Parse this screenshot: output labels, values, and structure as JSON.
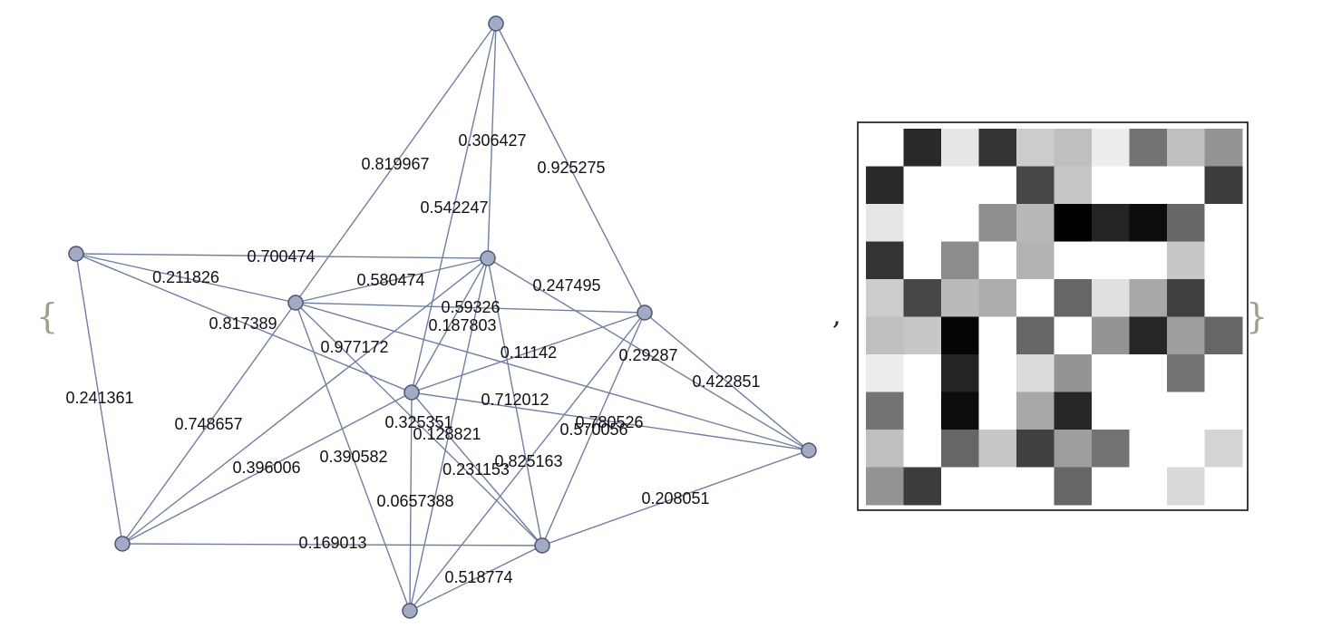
{
  "expression": {
    "open_brace": "{",
    "separator": ",",
    "close_brace": "}"
  },
  "graph": {
    "node_color": "#a3aac3",
    "edge_color": "#6f7fa3",
    "nodes": [
      "n1",
      "n2",
      "n3",
      "n4",
      "n5",
      "n6",
      "n7",
      "n8",
      "n9",
      "n10"
    ],
    "edges": [
      {
        "from": "n1",
        "to": "n2",
        "weight": "0.306427"
      },
      {
        "from": "n1",
        "to": "n4",
        "weight": "0.819967"
      },
      {
        "from": "n1",
        "to": "n5",
        "weight": "0.542247"
      },
      {
        "from": "n1",
        "to": "n8",
        "weight": "0.925275"
      },
      {
        "from": "n2",
        "to": "n3",
        "weight": "0.700474"
      },
      {
        "from": "n2",
        "to": "n4",
        "weight": "0.580474"
      },
      {
        "from": "n2",
        "to": "n5",
        "weight": "0.187803"
      },
      {
        "from": "n2",
        "to": "n6",
        "weight": "0.247495"
      },
      {
        "from": "n2",
        "to": "n7",
        "weight": "0.29287"
      },
      {
        "from": "n2",
        "to": "n9",
        "weight": "0.825163"
      },
      {
        "from": "n2",
        "to": "n10",
        "weight": "0.128821"
      },
      {
        "from": "n3",
        "to": "n4",
        "weight": "0.211826"
      },
      {
        "from": "n3",
        "to": "n5",
        "weight": "0.817389"
      },
      {
        "from": "n3",
        "to": "n6",
        "weight": "0.748657"
      },
      {
        "from": "n4",
        "to": "n6",
        "weight": "0.59326"
      },
      {
        "from": "n4",
        "to": "n8",
        "weight": "0.977172"
      },
      {
        "from": "n4",
        "to": "n9",
        "weight": "0.241361"
      },
      {
        "from": "n4",
        "to": "n10",
        "weight": "0.390582"
      },
      {
        "from": "n5",
        "to": "n6",
        "weight": "0.396006"
      },
      {
        "from": "n5",
        "to": "n7",
        "weight": "0.780526"
      },
      {
        "from": "n5",
        "to": "n8",
        "weight": "0.712012"
      },
      {
        "from": "n5",
        "to": "n9",
        "weight": "0.231153"
      },
      {
        "from": "n5",
        "to": "n10",
        "weight": "0.0657388"
      },
      {
        "from": "n6",
        "to": "n9",
        "weight": "0.169013"
      },
      {
        "from": "n7",
        "to": "n9",
        "weight": "0.208051"
      },
      {
        "from": "n8",
        "to": "n9",
        "weight": "0.11142"
      },
      {
        "from": "n8",
        "to": "n10",
        "weight": "0.325351"
      },
      {
        "from": "n8",
        "to": "n7",
        "weight": "0.422851"
      },
      {
        "from": "n9",
        "to": "n10",
        "weight": "0.518774"
      },
      {
        "from": "n4",
        "to": "n7",
        "weight": "0.570056"
      }
    ]
  },
  "matrix": {
    "rows": 10,
    "cols": 10,
    "values": [
      [
        1.0,
        0.16,
        0.9,
        0.2,
        0.8,
        0.75,
        0.93,
        0.45,
        0.75,
        0.58
      ],
      [
        0.16,
        1.0,
        1.0,
        1.0,
        0.28,
        0.78,
        1.0,
        1.0,
        1.0,
        0.24
      ],
      [
        0.9,
        1.0,
        1.0,
        0.56,
        0.72,
        0.0,
        0.14,
        0.05,
        0.4,
        1.0
      ],
      [
        0.2,
        1.0,
        0.55,
        1.0,
        0.7,
        1.0,
        1.0,
        1.0,
        0.78,
        1.0
      ],
      [
        0.8,
        0.28,
        0.73,
        0.68,
        1.0,
        0.4,
        0.88,
        0.66,
        0.25,
        1.0
      ],
      [
        0.75,
        0.78,
        0.02,
        1.0,
        0.4,
        1.0,
        0.58,
        0.15,
        0.62,
        0.4
      ],
      [
        0.93,
        1.0,
        0.14,
        1.0,
        0.86,
        0.58,
        1.0,
        1.0,
        0.45,
        1.0
      ],
      [
        0.45,
        1.0,
        0.05,
        1.0,
        0.66,
        0.15,
        1.0,
        1.0,
        1.0,
        1.0
      ],
      [
        0.75,
        1.0,
        0.4,
        0.78,
        0.25,
        0.62,
        0.45,
        1.0,
        1.0,
        0.83
      ],
      [
        0.58,
        0.24,
        1.0,
        1.0,
        1.0,
        0.4,
        1.0,
        1.0,
        0.85,
        1.0
      ]
    ]
  }
}
